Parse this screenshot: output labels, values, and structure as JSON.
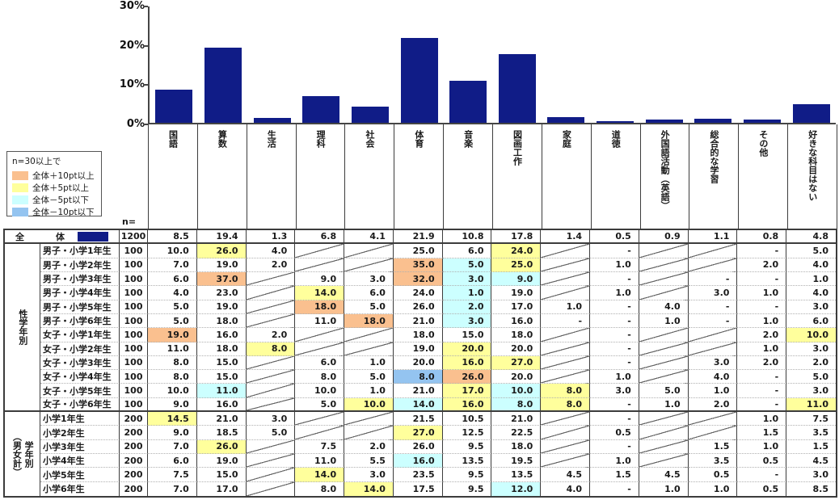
{
  "chart": {
    "y_ticks": [
      {
        "label": "0%",
        "value": 0
      },
      {
        "label": "10%",
        "value": 10
      },
      {
        "label": "20%",
        "value": 20
      },
      {
        "label": "30%",
        "value": 30
      }
    ]
  },
  "chart_data": {
    "type": "bar",
    "title": "",
    "xlabel": "",
    "ylabel": "",
    "ylim": [
      0,
      30
    ],
    "grid": false,
    "bar_color": "#101C87",
    "categories": [
      "国語",
      "算数",
      "生活",
      "理科",
      "社会",
      "体育",
      "音楽",
      "図画工作",
      "家庭",
      "道徳",
      "外国語活動（英語）",
      "総合的な学習",
      "その他",
      "好きな科目はない"
    ],
    "values": [
      8.5,
      19.4,
      1.3,
      6.8,
      4.1,
      21.9,
      10.8,
      17.8,
      1.4,
      0.5,
      0.9,
      1.1,
      0.8,
      4.8
    ]
  },
  "highlight_colors": {
    "p10": "#FAC08F",
    "p5": "#FFFF9C",
    "m5": "#CCFFFF",
    "m10": "#94C4F0"
  },
  "legend": {
    "title": "n=30以上で",
    "items": [
      {
        "key": "p10",
        "label": "全体＋10pt以上"
      },
      {
        "key": "p5",
        "label": "全体＋5pt以上"
      },
      {
        "key": "m5",
        "label": "全体－5pt以下"
      },
      {
        "key": "m10",
        "label": "全体－10pt以下"
      }
    ]
  },
  "table": {
    "n_label": "n=",
    "total_row": {
      "label": "全　体",
      "n": "1200",
      "cells": [
        [
          "8.5"
        ],
        [
          "19.4"
        ],
        [
          "1.3"
        ],
        [
          "6.8"
        ],
        [
          "4.1"
        ],
        [
          "21.9"
        ],
        [
          "10.8"
        ],
        [
          "17.8"
        ],
        [
          "1.4"
        ],
        [
          "0.5"
        ],
        [
          "0.9"
        ],
        [
          "1.1"
        ],
        [
          "0.8"
        ],
        [
          "4.8"
        ]
      ]
    },
    "sections": [
      {
        "group_label_lines": [
          "性学年別"
        ],
        "rows": [
          {
            "label": "男子・小学1年生",
            "n": "100",
            "cells": [
              [
                "10.0"
              ],
              [
                "26.0",
                "p5"
              ],
              [
                "4.0"
              ],
              [
                "D"
              ],
              [
                "D"
              ],
              [
                "25.0"
              ],
              [
                "6.0"
              ],
              [
                "24.0",
                "p5"
              ],
              [
                "D"
              ],
              [
                "-"
              ],
              [
                "D"
              ],
              [
                "D"
              ],
              [
                "-"
              ],
              [
                "5.0"
              ]
            ]
          },
          {
            "label": "男子・小学2年生",
            "n": "100",
            "cells": [
              [
                "7.0"
              ],
              [
                "19.0"
              ],
              [
                "2.0"
              ],
              [
                "D"
              ],
              [
                "D"
              ],
              [
                "35.0",
                "p10"
              ],
              [
                "5.0",
                "m5"
              ],
              [
                "25.0",
                "p5"
              ],
              [
                "D"
              ],
              [
                "1.0"
              ],
              [
                "D"
              ],
              [
                "D"
              ],
              [
                "2.0"
              ],
              [
                "4.0"
              ]
            ]
          },
          {
            "label": "男子・小学3年生",
            "n": "100",
            "cells": [
              [
                "6.0"
              ],
              [
                "37.0",
                "p10"
              ],
              [
                "D"
              ],
              [
                "9.0"
              ],
              [
                "3.0"
              ],
              [
                "32.0",
                "p10"
              ],
              [
                "3.0",
                "m5"
              ],
              [
                "9.0",
                "m5"
              ],
              [
                "D"
              ],
              [
                "-"
              ],
              [
                "D"
              ],
              [
                "-"
              ],
              [
                "-"
              ],
              [
                "1.0"
              ]
            ]
          },
          {
            "label": "男子・小学4年生",
            "n": "100",
            "cells": [
              [
                "4.0"
              ],
              [
                "23.0"
              ],
              [
                "D"
              ],
              [
                "14.0",
                "p5"
              ],
              [
                "6.0"
              ],
              [
                "24.0"
              ],
              [
                "1.0",
                "m5"
              ],
              [
                "19.0"
              ],
              [
                "D"
              ],
              [
                "1.0"
              ],
              [
                "D"
              ],
              [
                "3.0"
              ],
              [
                "1.0"
              ],
              [
                "4.0"
              ]
            ]
          },
          {
            "label": "男子・小学5年生",
            "n": "100",
            "cells": [
              [
                "5.0"
              ],
              [
                "19.0"
              ],
              [
                "D"
              ],
              [
                "18.0",
                "p10"
              ],
              [
                "5.0"
              ],
              [
                "26.0"
              ],
              [
                "2.0",
                "m5"
              ],
              [
                "17.0"
              ],
              [
                "1.0"
              ],
              [
                "-"
              ],
              [
                "4.0"
              ],
              [
                "-"
              ],
              [
                "-"
              ],
              [
                "3.0"
              ]
            ]
          },
          {
            "label": "男子・小学6年生",
            "n": "100",
            "cells": [
              [
                "5.0"
              ],
              [
                "18.0"
              ],
              [
                "D"
              ],
              [
                "11.0"
              ],
              [
                "18.0",
                "p10"
              ],
              [
                "21.0"
              ],
              [
                "3.0",
                "m5"
              ],
              [
                "16.0"
              ],
              [
                "-"
              ],
              [
                "-"
              ],
              [
                "1.0"
              ],
              [
                "-"
              ],
              [
                "1.0"
              ],
              [
                "6.0"
              ]
            ]
          },
          {
            "label": "女子・小学1年生",
            "n": "100",
            "cells": [
              [
                "19.0",
                "p10"
              ],
              [
                "16.0"
              ],
              [
                "2.0"
              ],
              [
                "D"
              ],
              [
                "D"
              ],
              [
                "18.0"
              ],
              [
                "15.0"
              ],
              [
                "18.0"
              ],
              [
                "D"
              ],
              [
                "-"
              ],
              [
                "D"
              ],
              [
                "D"
              ],
              [
                "2.0"
              ],
              [
                "10.0",
                "p5"
              ]
            ]
          },
          {
            "label": "女子・小学2年生",
            "n": "100",
            "cells": [
              [
                "11.0"
              ],
              [
                "18.0"
              ],
              [
                "8.0",
                "p5"
              ],
              [
                "D"
              ],
              [
                "D"
              ],
              [
                "19.0"
              ],
              [
                "20.0",
                "p5"
              ],
              [
                "20.0"
              ],
              [
                "D"
              ],
              [
                "-"
              ],
              [
                "D"
              ],
              [
                "D"
              ],
              [
                "1.0"
              ],
              [
                "3.0"
              ]
            ]
          },
          {
            "label": "女子・小学3年生",
            "n": "100",
            "cells": [
              [
                "8.0"
              ],
              [
                "15.0"
              ],
              [
                "D"
              ],
              [
                "6.0"
              ],
              [
                "1.0"
              ],
              [
                "20.0"
              ],
              [
                "16.0",
                "p5"
              ],
              [
                "27.0",
                "p5"
              ],
              [
                "D"
              ],
              [
                "-"
              ],
              [
                "D"
              ],
              [
                "3.0"
              ],
              [
                "2.0"
              ],
              [
                "2.0"
              ]
            ]
          },
          {
            "label": "女子・小学4年生",
            "n": "100",
            "cells": [
              [
                "8.0"
              ],
              [
                "15.0"
              ],
              [
                "D"
              ],
              [
                "8.0"
              ],
              [
                "5.0"
              ],
              [
                "8.0",
                "m10"
              ],
              [
                "26.0",
                "p10"
              ],
              [
                "20.0"
              ],
              [
                "D"
              ],
              [
                "1.0"
              ],
              [
                "D"
              ],
              [
                "4.0"
              ],
              [
                "-"
              ],
              [
                "5.0"
              ]
            ]
          },
          {
            "label": "女子・小学5年生",
            "n": "100",
            "cells": [
              [
                "10.0"
              ],
              [
                "11.0",
                "m5"
              ],
              [
                "D"
              ],
              [
                "10.0"
              ],
              [
                "1.0"
              ],
              [
                "21.0"
              ],
              [
                "17.0",
                "p5"
              ],
              [
                "10.0",
                "m5"
              ],
              [
                "8.0",
                "p5"
              ],
              [
                "3.0"
              ],
              [
                "5.0"
              ],
              [
                "1.0"
              ],
              [
                "-"
              ],
              [
                "3.0"
              ]
            ]
          },
          {
            "label": "女子・小学6年生",
            "n": "100",
            "cells": [
              [
                "9.0"
              ],
              [
                "16.0"
              ],
              [
                "D"
              ],
              [
                "5.0"
              ],
              [
                "10.0",
                "p5"
              ],
              [
                "14.0",
                "m5"
              ],
              [
                "16.0",
                "p5"
              ],
              [
                "8.0",
                "m5"
              ],
              [
                "8.0",
                "p5"
              ],
              [
                "-"
              ],
              [
                "1.0"
              ],
              [
                "2.0"
              ],
              [
                "-"
              ],
              [
                "11.0",
                "p5"
              ]
            ]
          }
        ]
      },
      {
        "group_label_lines": [
          "（男女計）",
          "学年別"
        ],
        "rows": [
          {
            "label": "小学1年生",
            "n": "200",
            "cells": [
              [
                "14.5",
                "p5"
              ],
              [
                "21.0"
              ],
              [
                "3.0"
              ],
              [
                "D"
              ],
              [
                "D"
              ],
              [
                "21.5"
              ],
              [
                "10.5"
              ],
              [
                "21.0"
              ],
              [
                "D"
              ],
              [
                "-"
              ],
              [
                "D"
              ],
              [
                "D"
              ],
              [
                "1.0"
              ],
              [
                "7.5"
              ]
            ]
          },
          {
            "label": "小学2年生",
            "n": "200",
            "cells": [
              [
                "9.0"
              ],
              [
                "18.5"
              ],
              [
                "5.0"
              ],
              [
                "D"
              ],
              [
                "D"
              ],
              [
                "27.0",
                "p5"
              ],
              [
                "12.5"
              ],
              [
                "22.5"
              ],
              [
                "D"
              ],
              [
                "0.5"
              ],
              [
                "D"
              ],
              [
                "D"
              ],
              [
                "1.5"
              ],
              [
                "3.5"
              ]
            ]
          },
          {
            "label": "小学3年生",
            "n": "200",
            "cells": [
              [
                "7.0"
              ],
              [
                "26.0",
                "p5"
              ],
              [
                "D"
              ],
              [
                "7.5"
              ],
              [
                "2.0"
              ],
              [
                "26.0"
              ],
              [
                "9.5"
              ],
              [
                "18.0"
              ],
              [
                "D"
              ],
              [
                "-"
              ],
              [
                "D"
              ],
              [
                "1.5"
              ],
              [
                "1.0"
              ],
              [
                "1.5"
              ]
            ]
          },
          {
            "label": "小学4年生",
            "n": "200",
            "cells": [
              [
                "6.0"
              ],
              [
                "19.0"
              ],
              [
                "D"
              ],
              [
                "11.0"
              ],
              [
                "5.5"
              ],
              [
                "16.0",
                "m5"
              ],
              [
                "13.5"
              ],
              [
                "19.5"
              ],
              [
                "D"
              ],
              [
                "1.0"
              ],
              [
                "D"
              ],
              [
                "3.5"
              ],
              [
                "0.5"
              ],
              [
                "4.5"
              ]
            ]
          },
          {
            "label": "小学5年生",
            "n": "200",
            "cells": [
              [
                "7.5"
              ],
              [
                "15.0"
              ],
              [
                "D"
              ],
              [
                "14.0",
                "p5"
              ],
              [
                "3.0"
              ],
              [
                "23.5"
              ],
              [
                "9.5"
              ],
              [
                "13.5"
              ],
              [
                "4.5"
              ],
              [
                "1.5"
              ],
              [
                "4.5"
              ],
              [
                "0.5"
              ],
              [
                "-"
              ],
              [
                "3.0"
              ]
            ]
          },
          {
            "label": "小学6年生",
            "n": "200",
            "cells": [
              [
                "7.0"
              ],
              [
                "17.0"
              ],
              [
                "D"
              ],
              [
                "8.0"
              ],
              [
                "14.0",
                "p5"
              ],
              [
                "17.5"
              ],
              [
                "9.5"
              ],
              [
                "12.0",
                "m5"
              ],
              [
                "4.0"
              ],
              [
                "-"
              ],
              [
                "1.0"
              ],
              [
                "1.0"
              ],
              [
                "0.5"
              ],
              [
                "8.5"
              ]
            ]
          }
        ]
      }
    ]
  }
}
